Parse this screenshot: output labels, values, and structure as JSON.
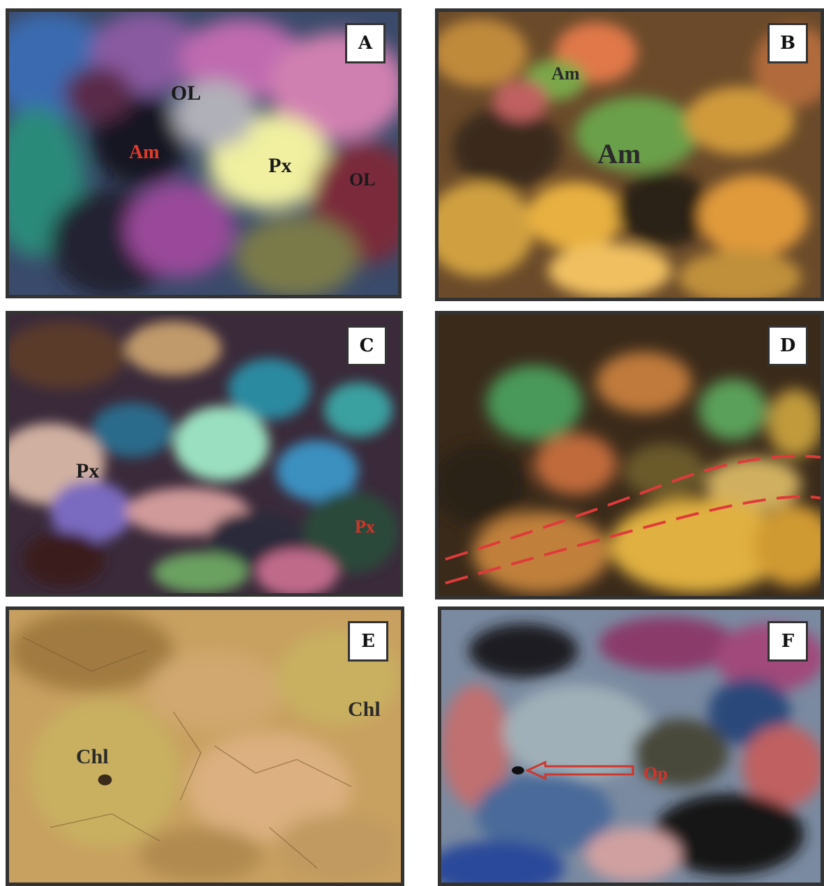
{
  "panels": [
    {
      "letter": "A",
      "labels": [
        {
          "text": "OL",
          "color": "#1a1a1a"
        },
        {
          "text": "Am",
          "color": "#e03a2a"
        },
        {
          "text": "Px",
          "color": "#1a1a1a"
        },
        {
          "text": "OL",
          "color": "#1a1a1a"
        }
      ]
    },
    {
      "letter": "B",
      "labels": [
        {
          "text": "Am",
          "color": "#2a2a2a"
        },
        {
          "text": "Am",
          "color": "#2a2a2a"
        }
      ]
    },
    {
      "letter": "C",
      "labels": [
        {
          "text": "Px",
          "color": "#1a1a1a"
        },
        {
          "text": "Px",
          "color": "#d0352a"
        }
      ]
    },
    {
      "letter": "D",
      "labels": []
    },
    {
      "letter": "E",
      "labels": [
        {
          "text": "Chl",
          "color": "#2a2a2a"
        },
        {
          "text": "Chl",
          "color": "#2a2a2a"
        }
      ]
    },
    {
      "letter": "F",
      "labels": [
        {
          "text": "Op",
          "color": "#d0352a"
        }
      ]
    }
  ]
}
